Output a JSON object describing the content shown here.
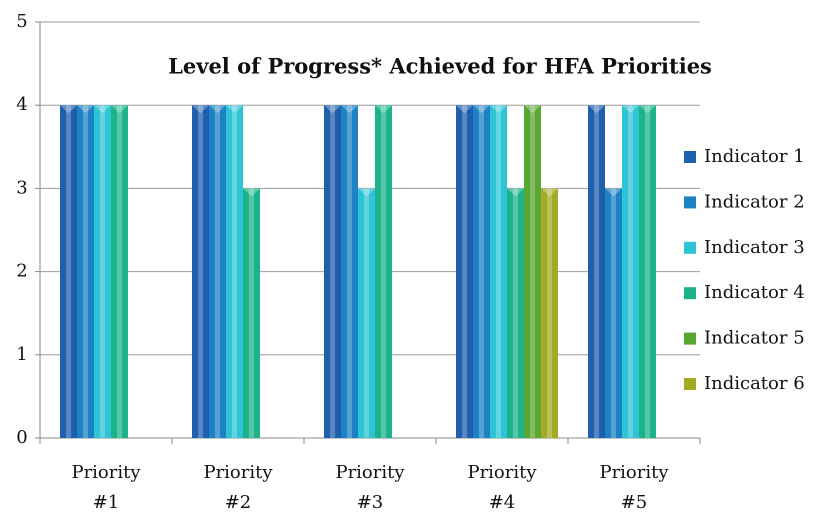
{
  "chart_data": {
    "type": "bar",
    "title": "Level of Progress* Achieved for HFA Priorities",
    "categories": [
      "Priority #1",
      "Priority #2",
      "Priority #3",
      "Priority #4",
      "Priority #5"
    ],
    "series": [
      {
        "name": "Indicator 1",
        "color": "#1f5fae",
        "values": [
          4,
          4,
          4,
          4,
          4
        ]
      },
      {
        "name": "Indicator 2",
        "color": "#1d82c4",
        "values": [
          4,
          4,
          4,
          4,
          3
        ]
      },
      {
        "name": "Indicator 3",
        "color": "#2ec4d6",
        "values": [
          4,
          4,
          3,
          4,
          4
        ]
      },
      {
        "name": "Indicator 4",
        "color": "#1db38a",
        "values": [
          4,
          3,
          4,
          3,
          4
        ]
      },
      {
        "name": "Indicator 5",
        "color": "#5aa632",
        "values": [
          null,
          null,
          null,
          4,
          null
        ]
      },
      {
        "name": "Indicator 6",
        "color": "#a3ab22",
        "values": [
          null,
          null,
          null,
          3,
          null
        ]
      }
    ],
    "ylim": [
      0,
      5
    ],
    "yticks": [
      0,
      1,
      2,
      3,
      4,
      5
    ],
    "grid": true,
    "legend": "right"
  }
}
